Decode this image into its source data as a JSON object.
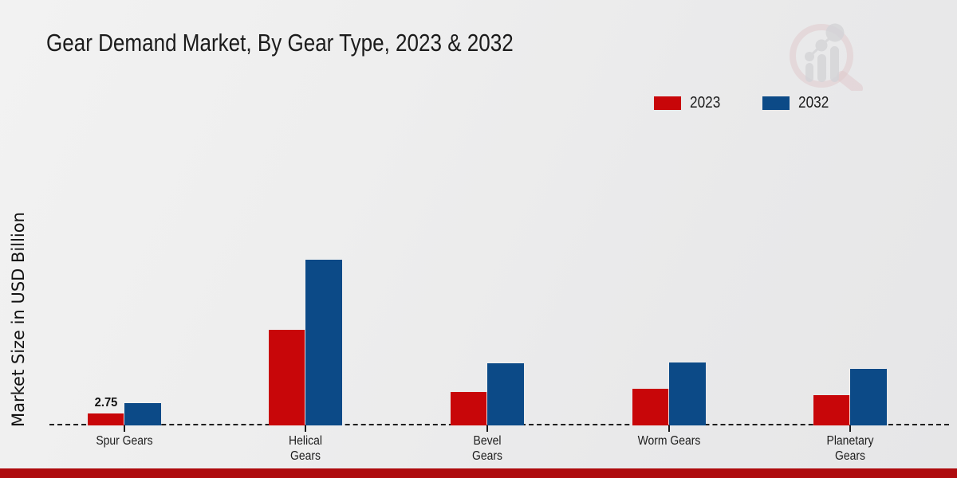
{
  "page": {
    "footer_bar_color": "#ae0b0e",
    "watermark_icon": "magnifier-growth-chart-logo",
    "watermark_ring_color": "#d9b0b4",
    "watermark_bar_color": "#c3c3c8"
  },
  "chart_data": {
    "type": "bar",
    "title": "Gear Demand Market, By Gear Type, 2023 & 2032",
    "xlabel": "",
    "ylabel": "Market Size in USD Billion",
    "categories": [
      "Spur Gears",
      "Helical Gears",
      "Bevel Gears",
      "Worm Gears",
      "Planetary Gears"
    ],
    "category_label_lines": [
      "Spur Gears",
      "Helical\nGears",
      "Bevel\nGears",
      "Worm Gears",
      "Planetary\nGears"
    ],
    "series": [
      {
        "name": "2023",
        "color": "#c80609",
        "values": [
          2.75,
          22.0,
          7.7,
          8.4,
          7.0
        ]
      },
      {
        "name": "2032",
        "color": "#0c4a87",
        "values": [
          5.1,
          38.1,
          14.3,
          14.5,
          13.0
        ]
      }
    ],
    "data_labels": [
      {
        "series_index": 0,
        "category_index": 0,
        "text": "2.75"
      }
    ],
    "ylim": [
      0,
      45
    ],
    "grid": false,
    "legend_position": "top-right",
    "baseline_style": "dashed"
  }
}
